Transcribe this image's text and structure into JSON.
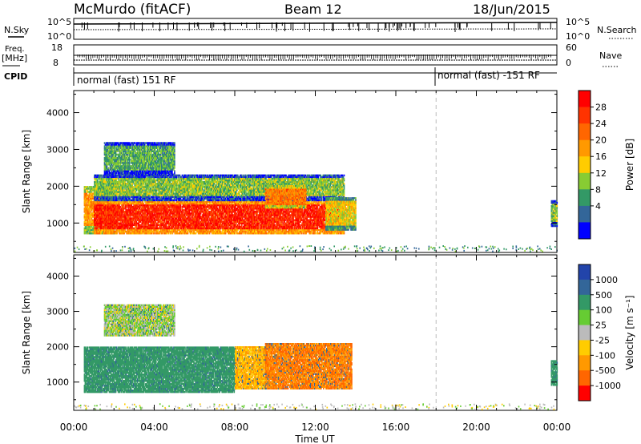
{
  "header": {
    "station": "McMurdo (fitACF)",
    "beam": "Beam 12",
    "date": "18/Jun/2015"
  },
  "top_panel": {
    "nsky_label": "N.Sky",
    "nsky_ticks": [
      "10^5",
      "10^0"
    ],
    "nsearch_label": "N.Search",
    "nsearch_ticks": [
      "10^5",
      "10^0"
    ],
    "freq_label": "Freq.",
    "freq_unit": "[MHz]",
    "freq_ticks": [
      "18",
      "8"
    ],
    "nave_label": "Nave",
    "nave_ticks": [
      "60",
      "0"
    ],
    "cpid_label": "CPID",
    "cpid_segments": [
      {
        "text": "normal (fast) 151 RF",
        "start_hour": 0
      },
      {
        "text": "normal (fast) -151 RF",
        "start_hour": 18
      }
    ]
  },
  "x_axis": {
    "label": "Time UT",
    "ticks": [
      "00:00",
      "04:00",
      "08:00",
      "12:00",
      "16:00",
      "20:00",
      "00:00"
    ]
  },
  "chart_data": [
    {
      "type": "heatmap",
      "panel": "power",
      "xlabel": "Time UT",
      "ylabel": "Slant Range [km]",
      "xlim_hours": [
        0,
        24
      ],
      "ylim": [
        200,
        4600
      ],
      "y_ticks": [
        "4000",
        "3000",
        "2000",
        "1000"
      ],
      "colorbar": {
        "label": "Power [dB]",
        "ticks": [
          "28",
          "24",
          "20",
          "16",
          "12",
          "8",
          "4"
        ],
        "colors": [
          "#ff0000",
          "#ff3300",
          "#ff6600",
          "#ff9900",
          "#ffcc00",
          "#88cc33",
          "#339966",
          "#336699",
          "#0000ff"
        ]
      },
      "regions": [
        {
          "t0": 0.5,
          "t1": 2.0,
          "r0": 700,
          "r1": 2000,
          "power": 20
        },
        {
          "t0": 1.0,
          "t1": 13.4,
          "r0": 700,
          "r1": 1600,
          "power": 28
        },
        {
          "t0": 1.0,
          "t1": 13.4,
          "r0": 1600,
          "r1": 2300,
          "power": 12
        },
        {
          "t0": 1.5,
          "t1": 5.0,
          "r0": 2300,
          "r1": 3200,
          "power": 10
        },
        {
          "t0": 9.5,
          "t1": 11.5,
          "r0": 1400,
          "r1": 2000,
          "power": 22
        },
        {
          "t0": 12.5,
          "t1": 14.0,
          "r0": 800,
          "r1": 1700,
          "power": 16
        },
        {
          "t0": 23.7,
          "t1": 24.0,
          "r0": 900,
          "r1": 1600,
          "power": 12
        }
      ],
      "day_marker_hour": 18
    },
    {
      "type": "heatmap",
      "panel": "velocity",
      "xlabel": "Time UT",
      "ylabel": "Slant Range [km]",
      "xlim_hours": [
        0,
        24
      ],
      "ylim": [
        200,
        4600
      ],
      "y_ticks": [
        "4000",
        "3000",
        "2000",
        "1000"
      ],
      "colorbar": {
        "label": "Velocity [m s⁻¹]",
        "ticks": [
          "1000",
          "500",
          "100",
          "25",
          "-25",
          "-100",
          "-500",
          "-1000"
        ],
        "colors": [
          "#2244aa",
          "#336699",
          "#339966",
          "#66cc33",
          "#bbbbbb",
          "#ffcc00",
          "#ff9900",
          "#ff6600",
          "#ff0000"
        ]
      },
      "regions": [
        {
          "t0": 0.5,
          "t1": 8.0,
          "r0": 700,
          "r1": 2000,
          "velocity": 200
        },
        {
          "t0": 8.0,
          "t1": 9.5,
          "r0": 800,
          "r1": 2000,
          "velocity": -100
        },
        {
          "t0": 9.5,
          "t1": 13.8,
          "r0": 800,
          "r1": 2100,
          "velocity": -500
        },
        {
          "t0": 1.5,
          "t1": 5.0,
          "r0": 2300,
          "r1": 3200,
          "velocity": 25
        },
        {
          "t0": 23.7,
          "t1": 24.0,
          "r0": 900,
          "r1": 1600,
          "velocity": 200
        }
      ],
      "day_marker_hour": 18
    }
  ]
}
